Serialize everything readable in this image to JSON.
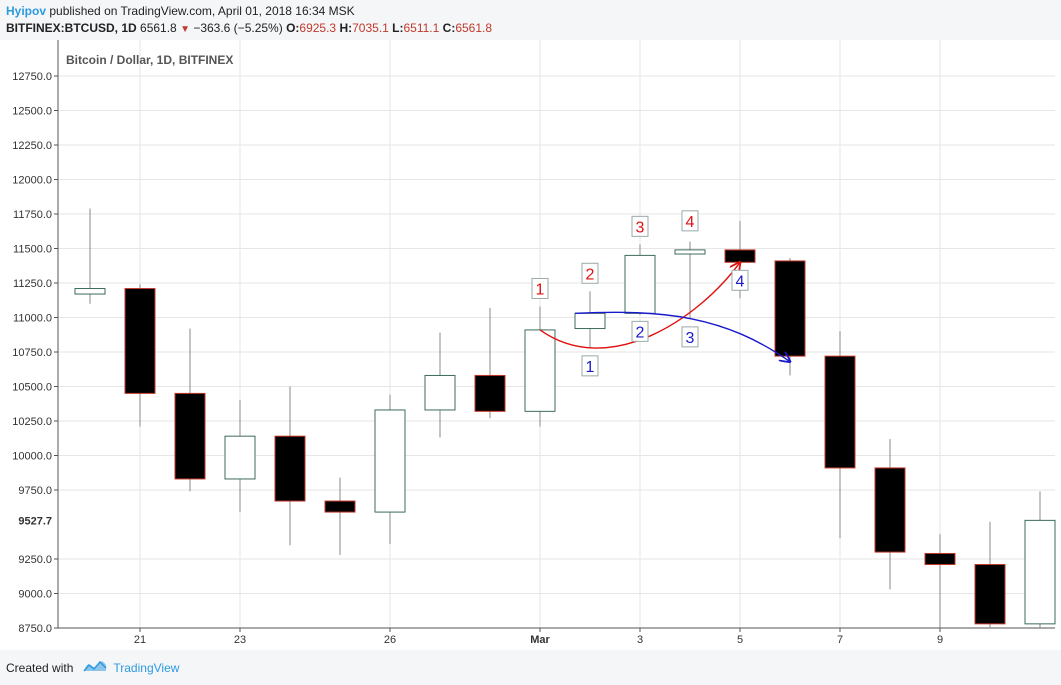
{
  "header": {
    "author": "Hyipov",
    "published_text": "published on TradingView.com, April 01, 2018 16:34 MSK",
    "symbol": "BITFINEX:BTCUSD, 1D",
    "last": "6561.8",
    "change": "−363.6 (−5.25%)",
    "open_label": "O:",
    "open": "6925.3",
    "high_label": "H:",
    "high": "7035.1",
    "low_label": "L:",
    "low": "6511.1",
    "close_label": "C:",
    "close": "6561.8"
  },
  "footer": {
    "created_with": "Created with",
    "brand": "TradingView"
  },
  "colors": {
    "up_border": "#3d6b5a",
    "down_fill": "#000000",
    "down_border": "#c0392b",
    "wick": "#888888",
    "red_annotation": "#e01010",
    "blue_annotation": "#1a1acc",
    "grid": "#e6e6e6",
    "price_tag_bg": "#ffffff"
  },
  "chart_data": {
    "type": "candlestick",
    "title": "Bitcoin / Dollar, 1D, BITFINEX",
    "ylim": [
      8750,
      12850
    ],
    "y_ticks": [
      "12750.0",
      "12500.0",
      "12250.0",
      "12000.0",
      "11750.0",
      "11500.0",
      "11250.0",
      "11000.0",
      "10750.0",
      "10500.0",
      "10250.0",
      "10000.0",
      "9750.0",
      "9250.0",
      "9000.0",
      "8750.0"
    ],
    "y_tick_values": [
      12750,
      12500,
      12250,
      12000,
      11750,
      11500,
      11250,
      11000,
      10750,
      10500,
      10250,
      10000,
      9750,
      9250,
      9000,
      8750
    ],
    "price_tag": {
      "label": "9527.7",
      "value": 9527.7
    },
    "x_ticks": [
      {
        "label": "21",
        "index": 1
      },
      {
        "label": "23",
        "index": 3
      },
      {
        "label": "26",
        "index": 6
      },
      {
        "label": "Mar",
        "index": 9,
        "bold": true
      },
      {
        "label": "3",
        "index": 11
      },
      {
        "label": "5",
        "index": 13
      },
      {
        "label": "7",
        "index": 15
      },
      {
        "label": "9",
        "index": 17
      }
    ],
    "candles": [
      {
        "i": 0,
        "o": 11170,
        "h": 11790,
        "l": 11100,
        "c": 11210
      },
      {
        "i": 1,
        "o": 11210,
        "h": 11240,
        "l": 10210,
        "c": 10450
      },
      {
        "i": 2,
        "o": 10450,
        "h": 10920,
        "l": 9740,
        "c": 9830
      },
      {
        "i": 3,
        "o": 9830,
        "h": 10400,
        "l": 9590,
        "c": 10140
      },
      {
        "i": 4,
        "o": 10140,
        "h": 10500,
        "l": 9350,
        "c": 9670
      },
      {
        "i": 5,
        "o": 9670,
        "h": 9840,
        "l": 9280,
        "c": 9590
      },
      {
        "i": 6,
        "o": 9590,
        "h": 10440,
        "l": 9360,
        "c": 10330
      },
      {
        "i": 7,
        "o": 10330,
        "h": 10890,
        "l": 10130,
        "c": 10580
      },
      {
        "i": 8,
        "o": 10580,
        "h": 11070,
        "l": 10270,
        "c": 10320
      },
      {
        "i": 9,
        "o": 10320,
        "h": 11080,
        "l": 10210,
        "c": 10910
      },
      {
        "i": 10,
        "o": 10920,
        "h": 11190,
        "l": 10780,
        "c": 11030
      },
      {
        "i": 11,
        "o": 11030,
        "h": 11530,
        "l": 11020,
        "c": 11450
      },
      {
        "i": 12,
        "o": 11460,
        "h": 11550,
        "l": 10990,
        "c": 11490
      },
      {
        "i": 13,
        "o": 11490,
        "h": 11700,
        "l": 11140,
        "c": 11400
      },
      {
        "i": 14,
        "o": 11410,
        "h": 11430,
        "l": 10580,
        "c": 10720
      },
      {
        "i": 15,
        "o": 10720,
        "h": 10900,
        "l": 9400,
        "c": 9910
      },
      {
        "i": 16,
        "o": 9910,
        "h": 10120,
        "l": 9030,
        "c": 9300
      },
      {
        "i": 17,
        "o": 9290,
        "h": 9430,
        "l": 8740,
        "c": 9210
      },
      {
        "i": 18,
        "o": 9210,
        "h": 9520,
        "l": 8740,
        "c": 8780
      },
      {
        "i": 19,
        "o": 8780,
        "h": 9740,
        "l": 8740,
        "c": 9530
      }
    ],
    "annotations": {
      "red_labels": [
        {
          "text": "1",
          "i": 9,
          "y": 11080
        },
        {
          "text": "2",
          "i": 10,
          "y": 11190
        },
        {
          "text": "3",
          "i": 11,
          "y": 11530
        },
        {
          "text": "4",
          "i": 12,
          "y": 11570
        }
      ],
      "blue_labels": [
        {
          "text": "1",
          "i": 10,
          "y": 10780
        },
        {
          "text": "2",
          "i": 11,
          "y": 11030
        },
        {
          "text": "3",
          "i": 12,
          "y": 10990
        },
        {
          "text": "4",
          "i": 13,
          "y": 11400
        }
      ],
      "red_curve": [
        {
          "i": 9.0,
          "y": 10910
        },
        {
          "i": 10.4,
          "y": 10550
        },
        {
          "i": 12.2,
          "y": 11000
        },
        {
          "i": 13.0,
          "y": 11400
        }
      ],
      "blue_curve": [
        {
          "i": 9.7,
          "y": 11030
        },
        {
          "i": 11.5,
          "y": 11060
        },
        {
          "i": 12.7,
          "y": 11010
        },
        {
          "i": 14.0,
          "y": 10680
        }
      ]
    }
  }
}
